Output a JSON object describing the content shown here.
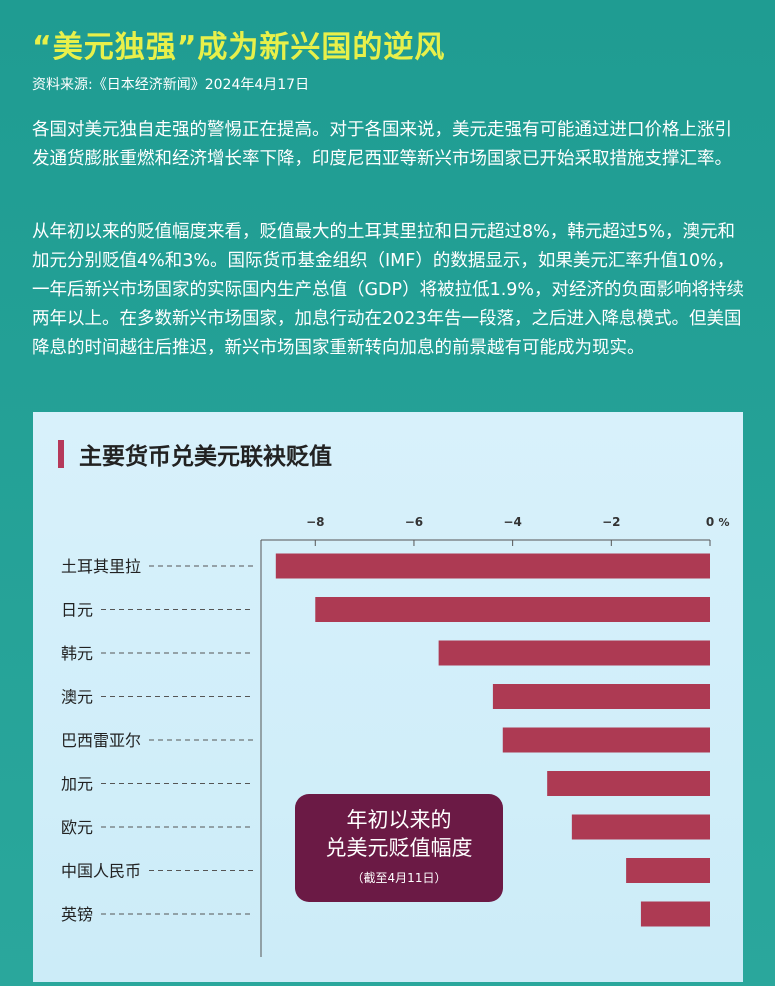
{
  "header": {
    "title": "“美元独强”成为新兴国的逆风",
    "source": "资料来源:《日本经济新闻》2024年4月17日"
  },
  "body": {
    "paragraph1": "各国对美元独自走强的警惕正在提高。对于各国来说，美元走强有可能通过进口价格上涨引发通货膨胀重燃和经济增长率下降，印度尼西亚等新兴市场国家已开始采取措施支撑汇率。",
    "paragraph2": "从年初以来的贬值幅度来看，贬值最大的土耳其里拉和日元超过8%，韩元超过5%，澳元和加元分别贬值4%和3%。国际货币基金组织（IMF）的数据显示，如果美元汇率升值10%，一年后新兴市场国家的实际国内生产总值（GDP）将被拉低1.9%，对经济的负面影响将持续两年以上。在多数新兴市场国家，加息行动在2023年告一段落，之后进入降息模式。但美国降息的时间越往后推迟，新兴市场国家重新转向加息的前景越有可能成为现实。"
  },
  "chart": {
    "title": "主要货币兑美元联袂贬值",
    "callout_line1": "年初以来的",
    "callout_line2": "兑美元贬值幅度",
    "callout_note": "（截至4月11日）"
  },
  "chart_data": {
    "type": "bar",
    "orientation": "horizontal",
    "title": "主要货币兑美元联袂贬值",
    "categories": [
      "土耳其里拉",
      "日元",
      "韩元",
      "澳元",
      "巴西雷亚尔",
      "加元",
      "欧元",
      "中国人民币",
      "英镑"
    ],
    "values": [
      -8.8,
      -8.0,
      -5.5,
      -4.4,
      -4.2,
      -3.3,
      -2.8,
      -1.7,
      -1.4
    ],
    "xticks": [
      "−8",
      "−6",
      "−4",
      "−2",
      "0"
    ],
    "xtick_values": [
      -8,
      -6,
      -4,
      -2,
      0
    ],
    "unit": "%",
    "xlim": [
      -9.1,
      0
    ],
    "bar_color": "#ad3a53",
    "grid": false
  }
}
